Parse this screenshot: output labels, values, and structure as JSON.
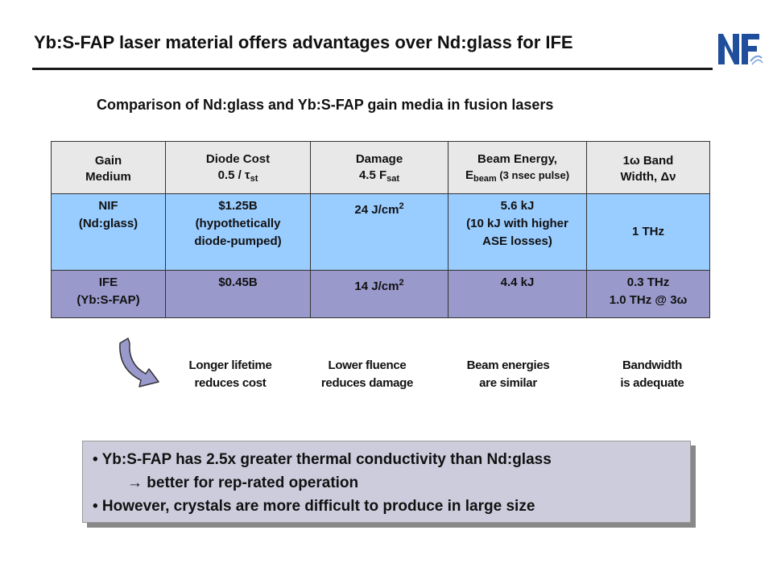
{
  "slide": {
    "title": "Yb:S-FAP laser material offers advantages over Nd:glass for IFE",
    "subtitle": "Comparison of Nd:glass and Yb:S-FAP gain media in fusion lasers"
  },
  "logo": {
    "icon": "nf-logo-icon",
    "text": "NF"
  },
  "table": {
    "headers": {
      "gain_medium_1": "Gain",
      "gain_medium_2": "Medium",
      "diode_cost_1": "Diode Cost",
      "diode_cost_2": "0.5 / τ",
      "diode_cost_sub": "st",
      "damage_1": "Damage",
      "damage_2": "4.5 F",
      "damage_sub": "sat",
      "beam_energy_1": "Beam Energy,",
      "beam_energy_2": "E",
      "beam_energy_sub": "beam",
      "beam_energy_3": " (3 nsec pulse)",
      "bandwidth_1": "1ω Band",
      "bandwidth_2": "Width, Δν"
    },
    "nif": {
      "medium_1": "NIF",
      "medium_2": "(Nd:glass)",
      "cost_1": "$1.25B",
      "cost_2": "(hypothetically",
      "cost_3": "diode-pumped)",
      "damage": "24 J/cm",
      "damage_sup": "2",
      "energy_1": "5.6 kJ",
      "energy_2": "(10 kJ with higher",
      "energy_3": "ASE losses)",
      "bandwidth": "1 THz"
    },
    "ife": {
      "medium_1": "IFE",
      "medium_2": "(Yb:S-FAP)",
      "cost": "$0.45B",
      "damage": "14 J/cm",
      "damage_sup": "2",
      "energy": "4.4 kJ",
      "bandwidth_1": "0.3 THz",
      "bandwidth_2": "1.0 THz @ 3ω"
    }
  },
  "notes": {
    "cost_1": "Longer lifetime",
    "cost_2": "reduces cost",
    "damage_1": "Lower fluence",
    "damage_2": "reduces damage",
    "energy_1": "Beam energies",
    "energy_2": "are similar",
    "bandwidth_1": "Bandwidth",
    "bandwidth_2": "is adequate"
  },
  "bullets": {
    "line_1": "• Yb:S-FAP has 2.5x greater thermal conductivity than Nd:glass",
    "line_2": "→ better for rep-rated operation",
    "line_3": "• However, crystals are more difficult to produce in large size"
  },
  "colors": {
    "nif_row": "#99ccff",
    "ife_row": "#9999cc",
    "header_row": "#e8e8e8",
    "logo_blue": "#1f4e9c",
    "bullet_box": "#ccccdd"
  }
}
